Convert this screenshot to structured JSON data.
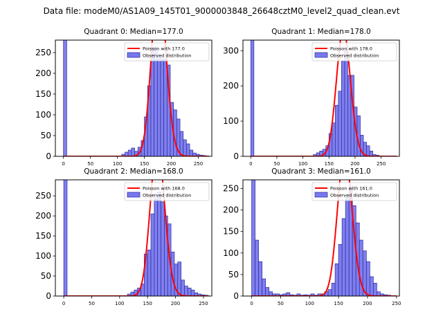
{
  "figure": {
    "suptitle": "Data file: modeM0/AS1A09_145T01_9000003848_26648cztM0_level2_quad_clean.evt"
  },
  "colors": {
    "bar_fill": "#7878ee",
    "bar_edge": "#2a2a9a",
    "poisson_line": "#ff0000",
    "axis": "#000000"
  },
  "chart_data": [
    {
      "type": "bar",
      "title": "Quadrant 0: Median=177.0",
      "median": 177.0,
      "xlim": [
        -15,
        275
      ],
      "ylim": [
        0,
        280
      ],
      "xticks": [
        0,
        50,
        100,
        150,
        200,
        250
      ],
      "yticks": [
        0,
        50,
        100,
        150,
        200,
        250
      ],
      "bin_width": 6,
      "bins": [
        [
          0,
          280
        ],
        [
          108,
          5
        ],
        [
          114,
          10
        ],
        [
          120,
          15
        ],
        [
          126,
          20
        ],
        [
          132,
          12
        ],
        [
          138,
          22
        ],
        [
          144,
          38
        ],
        [
          150,
          95
        ],
        [
          156,
          170
        ],
        [
          162,
          262
        ],
        [
          168,
          262
        ],
        [
          174,
          240
        ],
        [
          180,
          235
        ],
        [
          186,
          235
        ],
        [
          192,
          220
        ],
        [
          198,
          130
        ],
        [
          204,
          112
        ],
        [
          210,
          90
        ],
        [
          216,
          60
        ],
        [
          222,
          40
        ],
        [
          228,
          30
        ],
        [
          234,
          15
        ],
        [
          240,
          8
        ],
        [
          246,
          5
        ],
        [
          252,
          3
        ],
        [
          258,
          2
        ]
      ],
      "poisson_label": "Poisson with 177.0",
      "observed_label": "Observed distribution",
      "legend_position": "upper right"
    },
    {
      "type": "bar",
      "title": "Quadrant 1: Median=178.0",
      "median": 178.0,
      "xlim": [
        -15,
        285
      ],
      "ylim": [
        0,
        330
      ],
      "xticks": [
        0,
        50,
        100,
        150,
        200,
        250
      ],
      "yticks": [
        0,
        100,
        200,
        300
      ],
      "bin_width": 6,
      "bins": [
        [
          0,
          330
        ],
        [
          120,
          5
        ],
        [
          126,
          10
        ],
        [
          132,
          15
        ],
        [
          138,
          20
        ],
        [
          144,
          30
        ],
        [
          150,
          65
        ],
        [
          156,
          95
        ],
        [
          162,
          145
        ],
        [
          168,
          185
        ],
        [
          174,
          270
        ],
        [
          180,
          300
        ],
        [
          186,
          230
        ],
        [
          192,
          230
        ],
        [
          198,
          140
        ],
        [
          204,
          115
        ],
        [
          210,
          60
        ],
        [
          216,
          40
        ],
        [
          222,
          30
        ],
        [
          228,
          15
        ],
        [
          234,
          5
        ],
        [
          240,
          3
        ]
      ],
      "poisson_label": "Poisson with 178.0",
      "observed_label": "Observed distribution",
      "legend_position": "upper right"
    },
    {
      "type": "bar",
      "title": "Quadrant 2: Median=168.0",
      "median": 168.0,
      "xlim": [
        -15,
        265
      ],
      "ylim": [
        0,
        290
      ],
      "xticks": [
        0,
        50,
        100,
        150,
        200,
        250
      ],
      "yticks": [
        0,
        50,
        100,
        150,
        200,
        250
      ],
      "bin_width": 6,
      "bins": [
        [
          0,
          290
        ],
        [
          114,
          5
        ],
        [
          120,
          10
        ],
        [
          126,
          15
        ],
        [
          132,
          20
        ],
        [
          138,
          30
        ],
        [
          144,
          105
        ],
        [
          150,
          115
        ],
        [
          156,
          205
        ],
        [
          162,
          245
        ],
        [
          168,
          260
        ],
        [
          174,
          235
        ],
        [
          180,
          200
        ],
        [
          186,
          180
        ],
        [
          192,
          110
        ],
        [
          198,
          80
        ],
        [
          204,
          85
        ],
        [
          210,
          40
        ],
        [
          216,
          25
        ],
        [
          222,
          20
        ],
        [
          228,
          15
        ],
        [
          234,
          8
        ],
        [
          240,
          5
        ],
        [
          246,
          3
        ],
        [
          252,
          2
        ]
      ],
      "poisson_label": "Poisson with 168.0",
      "observed_label": "Observed distribution",
      "legend_position": "upper right"
    },
    {
      "type": "bar",
      "title": "Quadrant 3: Median=161.0",
      "median": 161.0,
      "xlim": [
        -15,
        255
      ],
      "ylim": [
        0,
        270
      ],
      "xticks": [
        0,
        50,
        100,
        150,
        200,
        250
      ],
      "yticks": [
        0,
        50,
        100,
        150,
        200,
        250
      ],
      "bin_width": 6,
      "bins": [
        [
          0,
          270
        ],
        [
          6,
          130
        ],
        [
          12,
          80
        ],
        [
          18,
          40
        ],
        [
          24,
          20
        ],
        [
          30,
          10
        ],
        [
          36,
          5
        ],
        [
          42,
          5
        ],
        [
          48,
          3
        ],
        [
          54,
          5
        ],
        [
          60,
          8
        ],
        [
          66,
          3
        ],
        [
          72,
          2
        ],
        [
          78,
          5
        ],
        [
          84,
          2
        ],
        [
          90,
          3
        ],
        [
          96,
          2
        ],
        [
          102,
          5
        ],
        [
          108,
          2
        ],
        [
          114,
          5
        ],
        [
          120,
          5
        ],
        [
          126,
          10
        ],
        [
          132,
          15
        ],
        [
          138,
          30
        ],
        [
          144,
          75
        ],
        [
          150,
          120
        ],
        [
          156,
          180
        ],
        [
          162,
          230
        ],
        [
          168,
          255
        ],
        [
          174,
          210
        ],
        [
          180,
          170
        ],
        [
          186,
          130
        ],
        [
          192,
          105
        ],
        [
          198,
          80
        ],
        [
          204,
          45
        ],
        [
          210,
          30
        ],
        [
          216,
          10
        ],
        [
          222,
          5
        ],
        [
          228,
          3
        ],
        [
          234,
          2
        ],
        [
          240,
          1
        ]
      ],
      "poisson_label": "Poisson with 161.0",
      "observed_label": "Observed distribution",
      "legend_position": "upper right"
    }
  ]
}
